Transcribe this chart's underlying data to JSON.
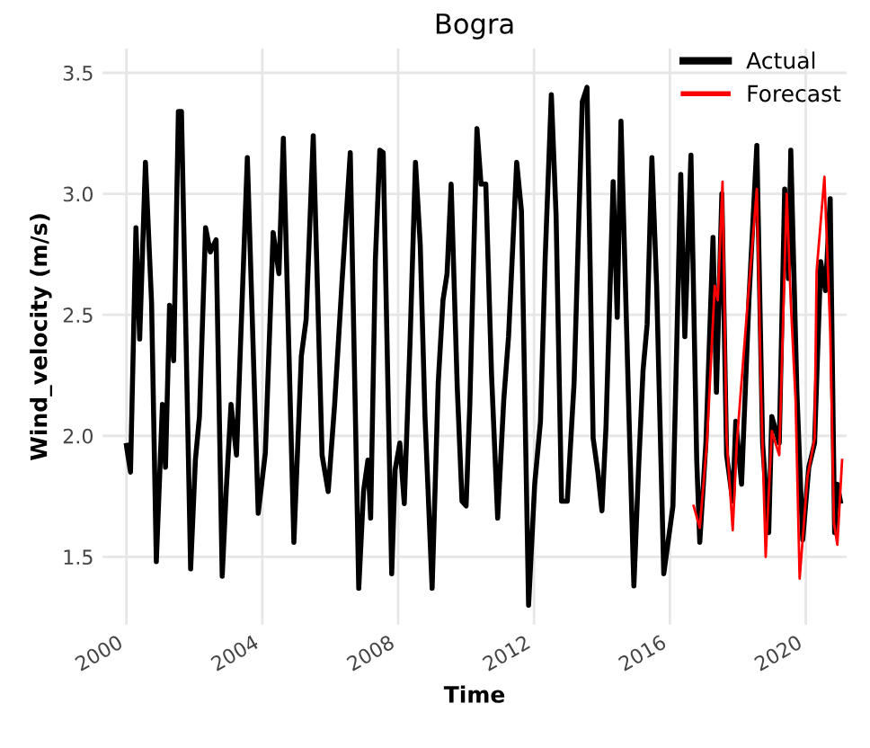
{
  "chart_data": {
    "type": "line",
    "title": "Bogra",
    "xlabel": "Time",
    "ylabel": "Wind_velocity (m/s)",
    "xlim": [
      1999.3,
      2021.2
    ],
    "ylim": [
      1.22,
      3.6
    ],
    "xticks": [
      2000,
      2004,
      2008,
      2012,
      2016,
      2020
    ],
    "yticks": [
      1.5,
      {
        "value": 2,
        "label": "2.0"
      },
      2.5,
      {
        "value": 3,
        "label": "3.0"
      },
      3.5
    ],
    "grid": true,
    "legend": "top right",
    "marker": "none",
    "line_style": "solid",
    "series": [
      {
        "name": "Actual",
        "color": "#000000",
        "x": [
          2000.0,
          2000.12,
          2000.28,
          2000.39,
          2000.56,
          2000.74,
          2000.88,
          2001.06,
          2001.15,
          2001.27,
          2001.39,
          2001.53,
          2001.62,
          2001.89,
          2002.03,
          2002.15,
          2002.33,
          2002.47,
          2002.64,
          2002.82,
          2002.94,
          2003.08,
          2003.24,
          2003.56,
          2003.88,
          2004.09,
          2004.32,
          2004.49,
          2004.62,
          2004.93,
          2005.15,
          2005.29,
          2005.5,
          2005.76,
          2005.94,
          2006.13,
          2006.34,
          2006.59,
          2006.84,
          2006.98,
          2007.11,
          2007.19,
          2007.33,
          2007.46,
          2007.56,
          2007.81,
          2007.91,
          2008.05,
          2008.18,
          2008.35,
          2008.51,
          2008.65,
          2008.79,
          2009.0,
          2009.18,
          2009.32,
          2009.44,
          2009.56,
          2009.74,
          2009.88,
          2010.0,
          2010.11,
          2010.32,
          2010.44,
          2010.58,
          2010.75,
          2010.93,
          2011.11,
          2011.25,
          2011.49,
          2011.63,
          2011.84,
          2012.02,
          2012.19,
          2012.33,
          2012.51,
          2012.65,
          2012.81,
          2012.98,
          2013.18,
          2013.42,
          2013.56,
          2013.74,
          2013.88,
          2014.0,
          2014.12,
          2014.33,
          2014.45,
          2014.56,
          2014.8,
          2014.94,
          2015.08,
          2015.21,
          2015.33,
          2015.47,
          2015.61,
          2015.82,
          2016.09,
          2016.32,
          2016.44,
          2016.62,
          2016.79,
          2016.88,
          2017.06,
          2017.27,
          2017.37,
          2017.53,
          2017.67,
          2017.85,
          2017.94,
          2018.11,
          2018.33,
          2018.56,
          2018.73,
          2018.91,
          2019.0,
          2019.22,
          2019.38,
          2019.49,
          2019.56,
          2019.74,
          2019.91,
          2020.09,
          2020.26,
          2020.44,
          2020.58,
          2020.72,
          2020.85,
          2020.93,
          2021.02
        ],
        "values": [
          1.96,
          1.85,
          2.86,
          2.4,
          3.13,
          2.55,
          1.48,
          2.13,
          1.87,
          2.54,
          2.31,
          3.34,
          3.34,
          1.45,
          1.9,
          2.08,
          2.86,
          2.76,
          2.81,
          1.42,
          1.78,
          2.13,
          1.92,
          3.15,
          1.68,
          1.93,
          2.84,
          2.67,
          3.23,
          1.56,
          2.33,
          2.48,
          3.24,
          1.92,
          1.77,
          2.13,
          2.62,
          3.17,
          1.37,
          1.77,
          1.9,
          1.66,
          2.73,
          3.18,
          3.17,
          1.43,
          1.86,
          1.97,
          1.72,
          2.39,
          3.13,
          2.79,
          2.08,
          1.37,
          2.22,
          2.56,
          2.67,
          3.04,
          2.2,
          1.73,
          1.71,
          2.13,
          3.27,
          3.04,
          3.04,
          2.25,
          1.66,
          2.15,
          2.41,
          3.13,
          2.93,
          1.3,
          1.8,
          2.06,
          2.74,
          3.41,
          2.91,
          1.73,
          1.73,
          2.22,
          3.38,
          3.44,
          1.99,
          1.85,
          1.69,
          2.04,
          3.05,
          2.49,
          3.3,
          2.06,
          1.38,
          1.87,
          2.27,
          2.46,
          3.15,
          2.62,
          1.43,
          1.71,
          3.08,
          2.41,
          3.16,
          1.9,
          1.56,
          1.97,
          2.82,
          2.18,
          3.0,
          1.92,
          1.73,
          2.06,
          1.8,
          2.57,
          3.2,
          1.97,
          1.6,
          2.08,
          1.97,
          3.02,
          2.65,
          3.18,
          2.18,
          1.57,
          1.87,
          1.97,
          2.72,
          2.6,
          2.98,
          1.6,
          1.8,
          1.73
        ]
      },
      {
        "name": "Forecast",
        "color": "#ff0000",
        "x": [
          2016.7,
          2016.88,
          2017.09,
          2017.32,
          2017.41,
          2017.55,
          2017.67,
          2017.85,
          2017.97,
          2018.29,
          2018.56,
          2018.68,
          2018.82,
          2019.0,
          2019.22,
          2019.44,
          2019.56,
          2019.7,
          2019.82,
          2020.05,
          2020.26,
          2020.32,
          2020.55,
          2020.72,
          2020.83,
          2020.93,
          2021.07
        ],
        "values": [
          1.71,
          1.62,
          1.97,
          2.62,
          2.56,
          3.05,
          1.99,
          1.61,
          1.97,
          2.55,
          3.02,
          2.2,
          1.5,
          2.02,
          1.92,
          3.0,
          2.55,
          2.15,
          1.41,
          1.83,
          1.99,
          2.68,
          3.07,
          2.44,
          1.64,
          1.55,
          1.9
        ]
      }
    ]
  }
}
